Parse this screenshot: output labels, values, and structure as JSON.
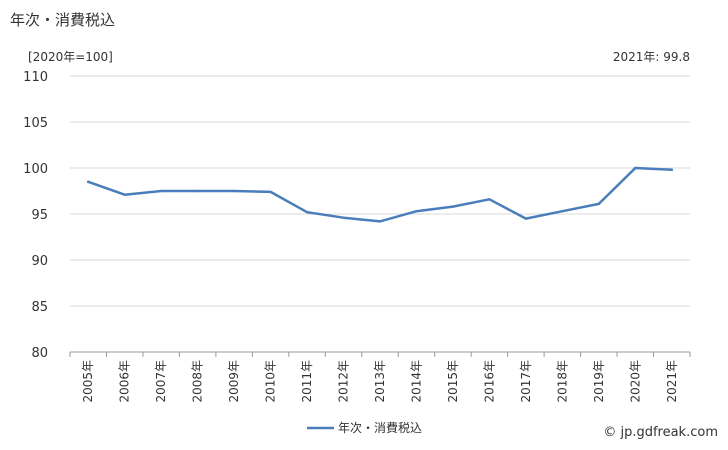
{
  "header": {
    "title": "年次・消費税込",
    "unit": "[2020年=100]",
    "note": "2021年: 99.8"
  },
  "footer": {
    "credit": "© jp.gdfreak.com"
  },
  "colors": {
    "line": "#4a7ebb",
    "grid": "#d9d9d9",
    "axis": "#999999"
  },
  "chart_data": {
    "type": "line",
    "title": "",
    "xlabel": "",
    "ylabel": "",
    "categories": [
      "2005年",
      "2006年",
      "2007年",
      "2008年",
      "2009年",
      "2010年",
      "2011年",
      "2012年",
      "2013年",
      "2014年",
      "2015年",
      "2016年",
      "2017年",
      "2018年",
      "2019年",
      "2020年",
      "2021年"
    ],
    "series": [
      {
        "name": "年次・消費税込",
        "values": [
          98.5,
          97.1,
          97.5,
          97.5,
          97.5,
          97.4,
          95.2,
          94.6,
          94.2,
          95.3,
          95.8,
          96.6,
          94.5,
          95.3,
          96.1,
          100.0,
          99.8
        ]
      }
    ],
    "ylim": [
      80,
      110
    ],
    "yticks": [
      80,
      85,
      90,
      95,
      100,
      105,
      110
    ],
    "grid": true,
    "legend": "bottom-center"
  }
}
